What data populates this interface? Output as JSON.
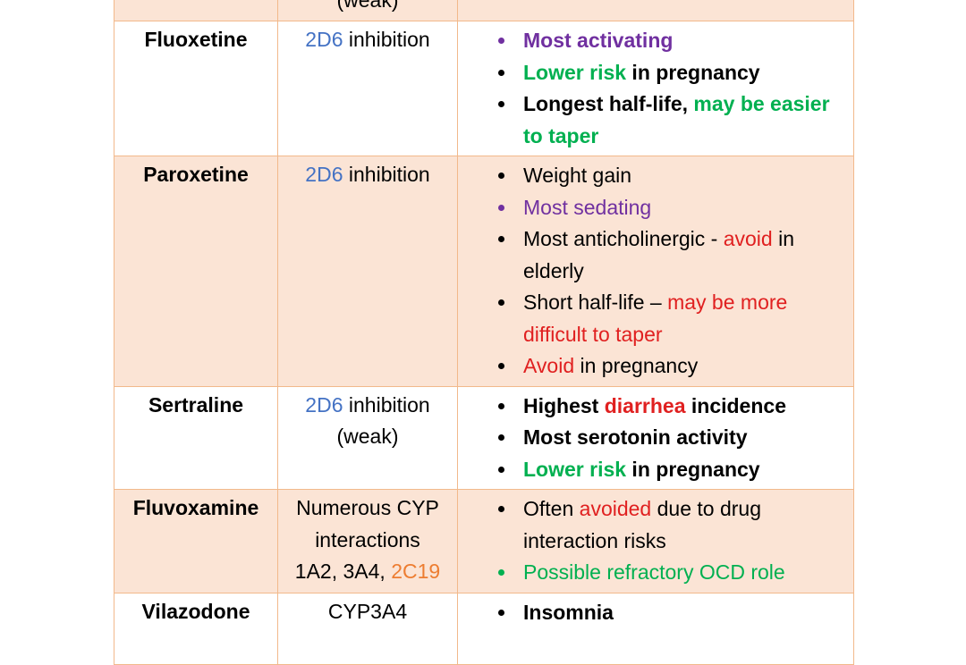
{
  "colors": {
    "purple": "#7030a0",
    "green": "#00b050",
    "red": "#e02020",
    "blue": "#4472c4",
    "orange": "#ed7d31",
    "shade": "#fbe4d5",
    "border": "#f2b98b"
  },
  "top_row": {
    "mechanism": "(weak)"
  },
  "fluoxetine": {
    "name": "Fluoxetine",
    "mech_a": "2D6",
    "mech_b": " inhibition",
    "notes": {
      "n1": "Most activating",
      "n2a": "Lower risk",
      "n2b": " in pregnancy",
      "n3a": "Longest half-life, ",
      "n3b": "may be easier to taper"
    }
  },
  "paroxetine": {
    "name": "Paroxetine",
    "mech_a": "2D6",
    "mech_b": " inhibition",
    "notes": {
      "n1": "Weight gain",
      "n2": "Most sedating",
      "n3a": "Most anticholinergic - ",
      "n3b": "avoid",
      "n3c": " in elderly",
      "n4a": "Short half-life – ",
      "n4b": "may be more difficult to taper",
      "n5a": "Avoid",
      "n5b": " in pregnancy"
    }
  },
  "sertraline": {
    "name": "Sertraline",
    "mech_a": "2D6",
    "mech_b": " inhibition",
    "mech_c": "(weak)",
    "notes": {
      "n1a": "Highest ",
      "n1b": "diarrhea",
      "n1c": " incidence",
      "n2": "Most serotonin activity",
      "n3a": "Lower risk",
      "n3b": " in pregnancy"
    }
  },
  "fluvoxamine": {
    "name": "Fluvoxamine",
    "mech_a": "Numerous CYP",
    "mech_b": "interactions",
    "mech_c": "1A2, 3A4, ",
    "mech_d": "2C19",
    "notes": {
      "n1a": "Often ",
      "n1b": "avoided",
      "n1c": " due to drug interaction risks",
      "n2": "Possible refractory OCD role"
    }
  },
  "vilazodone": {
    "name": "Vilazodone",
    "mech_a": "CYP3A4",
    "notes": {
      "n1": "Insomnia"
    }
  }
}
